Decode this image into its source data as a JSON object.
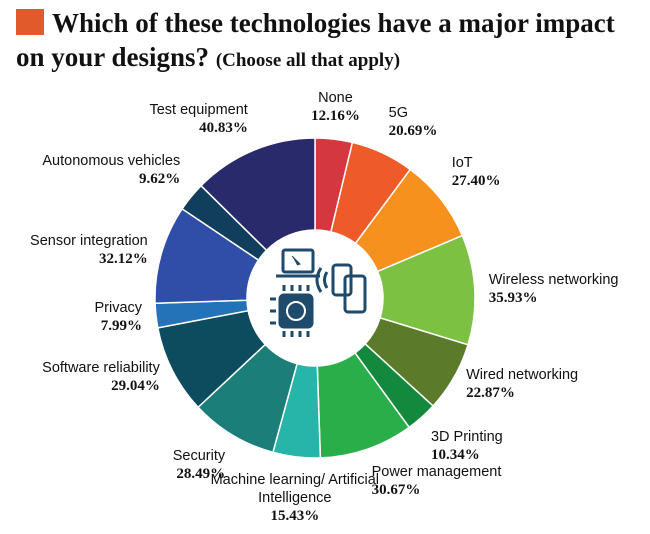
{
  "chart_data": {
    "type": "donut",
    "title": "Which of these technologies have a major impact on your designs?",
    "subtitle": "(Choose all that apply)",
    "categories": [
      "None",
      "5G",
      "IoT",
      "Wireless networking",
      "Wired networking",
      "3D Printing",
      "Power management",
      "Machine learning/ Artificial Intelligence",
      "Security",
      "Software reliability",
      "Privacy",
      "Sensor integration",
      "Autonomous vehicles",
      "Test equipment"
    ],
    "values": [
      12.16,
      20.69,
      27.4,
      35.93,
      22.87,
      10.34,
      30.67,
      15.43,
      28.49,
      29.04,
      7.99,
      32.12,
      9.62,
      40.83
    ],
    "value_labels": [
      "12.16%",
      "20.69%",
      "27.40%",
      "35.93%",
      "22.87%",
      "10.34%",
      "30.67%",
      "15.43%",
      "28.49%",
      "29.04%",
      "7.99%",
      "32.12%",
      "9.62%",
      "40.83%"
    ],
    "colors": [
      "#d5373f",
      "#ef5a29",
      "#f7911e",
      "#7cc142",
      "#5b7b2a",
      "#13893d",
      "#2aae49",
      "#27b4a9",
      "#1b7e79",
      "#0d4c5e",
      "#2473b8",
      "#2f4ea7",
      "#123e5d",
      "#282a6b"
    ]
  }
}
